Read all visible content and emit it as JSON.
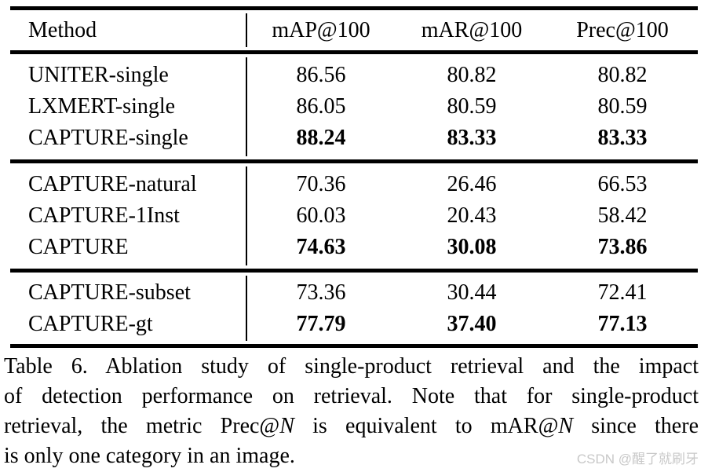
{
  "colors": {
    "text": "#000000",
    "background": "#ffffff",
    "rule": "#000000",
    "watermark": "#c8c8c8"
  },
  "table": {
    "columns": [
      "Method",
      "mAP@100",
      "mAR@100",
      "Prec@100"
    ],
    "groups": [
      {
        "rows": [
          {
            "method": "UNITER-single",
            "values": [
              "86.56",
              "80.82",
              "80.82"
            ],
            "bold": false
          },
          {
            "method": "LXMERT-single",
            "values": [
              "86.05",
              "80.59",
              "80.59"
            ],
            "bold": false
          },
          {
            "method": "CAPTURE-single",
            "values": [
              "88.24",
              "83.33",
              "83.33"
            ],
            "bold": true
          }
        ]
      },
      {
        "rows": [
          {
            "method": "CAPTURE-natural",
            "values": [
              "70.36",
              "26.46",
              "66.53"
            ],
            "bold": false
          },
          {
            "method": "CAPTURE-1Inst",
            "values": [
              "60.03",
              "20.43",
              "58.42"
            ],
            "bold": false
          },
          {
            "method": "CAPTURE",
            "values": [
              "74.63",
              "30.08",
              "73.86"
            ],
            "bold": true
          }
        ]
      },
      {
        "rows": [
          {
            "method": "CAPTURE-subset",
            "values": [
              "73.36",
              "30.44",
              "72.41"
            ],
            "bold": false
          },
          {
            "method": "CAPTURE-gt",
            "values": [
              "77.79",
              "37.40",
              "77.13"
            ],
            "bold": true
          }
        ]
      }
    ]
  },
  "caption": {
    "line1": "Table 6. Ablation study of single-product retrieval and the impact",
    "line2": "of detection performance on retrieval. Note that for single-product",
    "line3": {
      "s1": "retrieval, the metric Prec@",
      "n1": "N",
      "s2": " is equivalent to mAR@",
      "n2": "N",
      "s3": " since there"
    },
    "line4": "is only one category in an image."
  },
  "watermark": {
    "text": "CSDN @醒了就刷牙"
  }
}
